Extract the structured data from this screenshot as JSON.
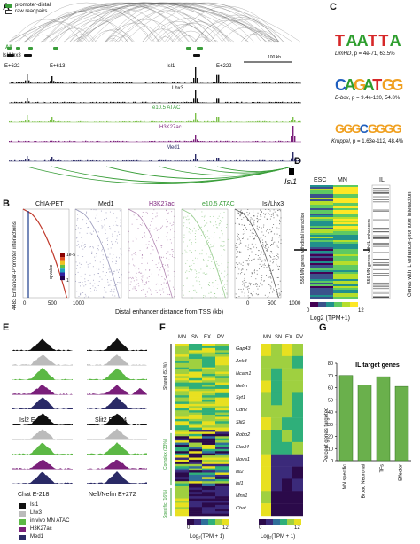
{
  "panels": {
    "A": "A",
    "B": "B",
    "C": "C",
    "D": "D",
    "E": "E",
    "F": "F",
    "G": "G"
  },
  "panelA": {
    "legend": [
      "promoter-distal",
      "raw readpairs"
    ],
    "track_labels": {
      "all": "All",
      "isl_lhx3": "Isl/Lhx3",
      "e622": "E+622",
      "e613": "E+613",
      "isl1_track": "Isl1",
      "e222": "E+222",
      "scale": "100 kb",
      "lhx3": "Lhx3",
      "atac": "e10.5 ATAC",
      "h3k27ac": "H3K27ac",
      "med1": "Med1",
      "gene": "Isl1"
    },
    "colors": {
      "green": "#3a9e3a",
      "purple": "#7a1f7a",
      "atac": "#7cc04a"
    }
  },
  "panelB": {
    "titles": [
      "ChIA-PET",
      "Med1",
      "H3K27ac",
      "e10.5 ATAC",
      "Isl/Lhx3"
    ],
    "ylabel": "4483 Enhancer-Promoter interactions",
    "xlabel": "Distal enhancer distance from TSS (kb)",
    "ticks": [
      "0",
      "500",
      "1000"
    ],
    "colorbar_label": "q-value",
    "colorbar_ticks": [
      "1e-5",
      "1"
    ]
  },
  "panelC": {
    "motifs": [
      {
        "name": "LimHD",
        "p": ", p = 4e-71, 63.5%",
        "logo": "TAATTA"
      },
      {
        "name": "E-box",
        "p": ", p = 9.4e-120, 54.8%",
        "logo": "CAGATGG"
      },
      {
        "name": "Kruppel",
        "p": ", p = 1.63e-112, 48.4%",
        "logo": "GGGCGGGG"
      }
    ]
  },
  "panelD": {
    "col_labels": [
      "ESC",
      "MN"
    ],
    "il_label": "IL",
    "left_ylabel": "556 MN genes with distal interaction",
    "right_ylabel": "556 MN genes with IL enhancers",
    "far_label": "Genes with IL enhancer-promoter interaction",
    "colorbar_ticks": [
      "0",
      "12"
    ],
    "colorbar_label": "Log2 (TPM+1)"
  },
  "panelE": {
    "loci": [
      "Isl2 E+155",
      "Slit2 E+204",
      "Chat E-218",
      "Nefl/Nefm E+272"
    ],
    "legend": [
      "Isl1",
      "Lhx3",
      "in vivo MN ATAC",
      "H3K27ac",
      "Med1"
    ],
    "legend_colors": [
      "#111111",
      "#bbbbbb",
      "#5cb845",
      "#7a1f7a",
      "#2a2a66"
    ]
  },
  "panelF": {
    "col_labels": [
      "MN",
      "SN",
      "EX",
      "PV"
    ],
    "groups": [
      "Shared (51%)",
      "Complex (33%)",
      "Specific (16%)"
    ],
    "genes": [
      "Gap43",
      "Ank3",
      "Ncam1",
      "Nefm",
      "Syt1",
      "Cdh2",
      "Slit2",
      "Robo2",
      "Elavl4",
      "Nova1",
      "Isl2",
      "Isl1",
      "Mnx1",
      "Chat"
    ],
    "colorbar_ticks": [
      "0",
      "12"
    ],
    "colorbar_label": "Log₂(TPM + 1)"
  },
  "panelG": {
    "title": "IL target genes",
    "ylabel": "Percent genes targeted",
    "yticks": [
      "0",
      "10",
      "20",
      "30",
      "40",
      "50",
      "60",
      "70",
      "80"
    ],
    "chart_data": {
      "type": "bar",
      "categories": [
        "MN specific",
        "Broad Neuronal",
        "TFs",
        "Effector"
      ],
      "values": [
        70,
        62,
        69,
        61
      ],
      "ylim": [
        0,
        80
      ],
      "title": "IL target genes",
      "ylabel": "Percent genes targeted",
      "color": "#6ab04c"
    }
  }
}
